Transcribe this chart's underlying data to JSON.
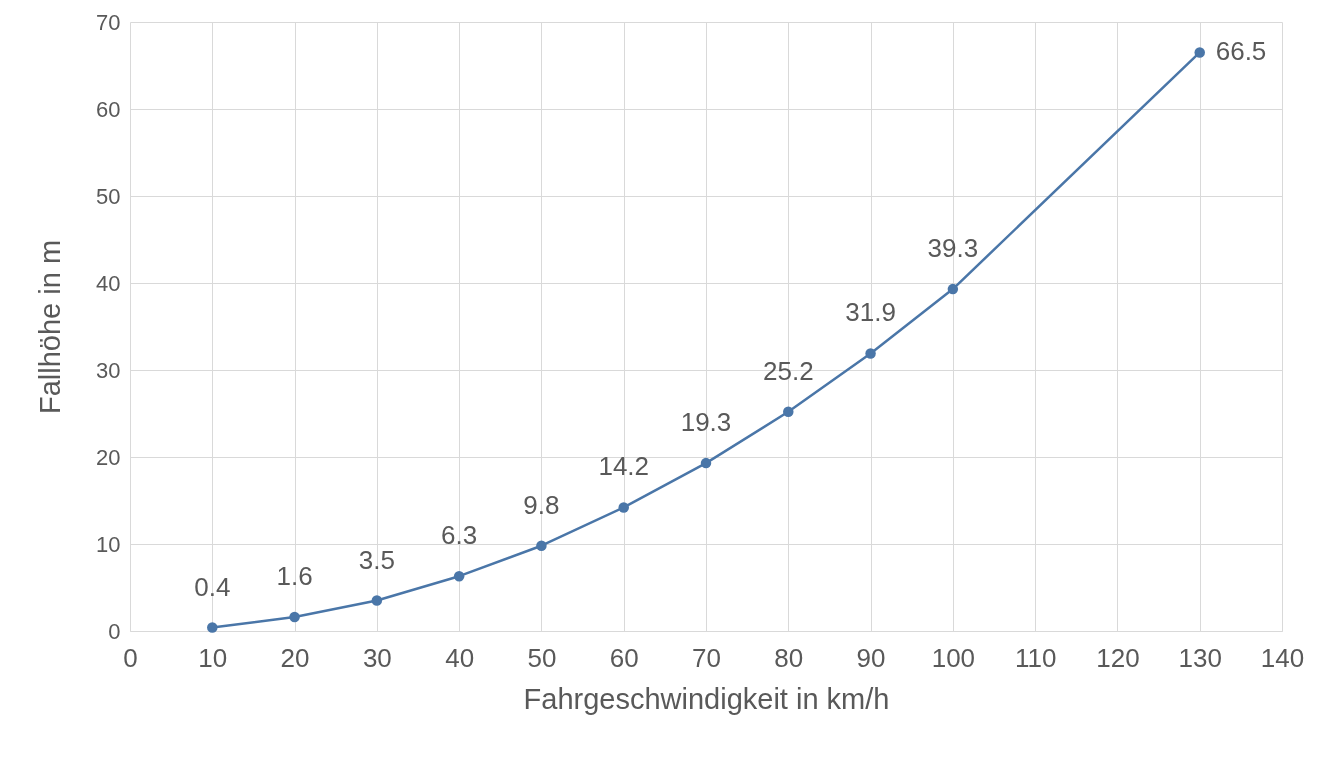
{
  "chart_data": {
    "type": "line",
    "xlabel": "Fahrgeschwindigkeit in km/h",
    "ylabel": "Fallhöhe in m",
    "x": [
      10,
      20,
      30,
      40,
      50,
      60,
      70,
      80,
      90,
      100,
      130
    ],
    "series": [
      {
        "color": "#4a76a8",
        "values": [
          0.4,
          1.6,
          3.5,
          6.3,
          9.8,
          14.2,
          19.3,
          25.2,
          31.9,
          39.3,
          66.5
        ]
      }
    ],
    "xlim": [
      0,
      140
    ],
    "xticks": [
      0,
      10,
      20,
      30,
      40,
      50,
      60,
      70,
      80,
      90,
      100,
      110,
      120,
      130,
      140
    ],
    "ylim": [
      0,
      70
    ],
    "yticks": [
      0,
      10,
      20,
      30,
      40,
      50,
      60,
      70
    ],
    "grid": true,
    "marker": "circle",
    "line_style": "solid",
    "data_labels": true
  }
}
